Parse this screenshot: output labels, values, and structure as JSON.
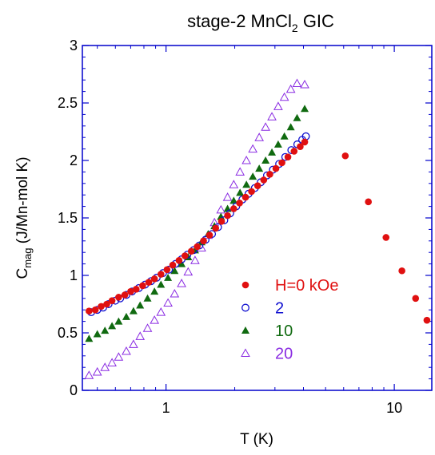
{
  "chart_data": {
    "type": "scatter",
    "title": {
      "main": "stage-2 MnCl",
      "sub": "2",
      "tail": " GIC"
    },
    "xlabel": "T (K)",
    "ylabel": {
      "main": "C",
      "sub": "mag",
      "tail": " (J/Mn-mol K)"
    },
    "xscale": "log",
    "xlim": [
      0.43,
      14.6
    ],
    "ylim": [
      0,
      3
    ],
    "x_ticks": [
      {
        "value": 1,
        "label": "1"
      },
      {
        "value": 10,
        "label": "10"
      }
    ],
    "y_ticks": [
      {
        "value": 0,
        "label": "0"
      },
      {
        "value": 0.5,
        "label": "0.5"
      },
      {
        "value": 1,
        "label": "1"
      },
      {
        "value": 1.5,
        "label": "1.5"
      },
      {
        "value": 2,
        "label": "2"
      },
      {
        "value": 2.5,
        "label": "2.5"
      },
      {
        "value": 3,
        "label": "3"
      }
    ],
    "grid": false,
    "legend_position": "right",
    "series": [
      {
        "name": "H=0 kOe",
        "marker": "filled-circle",
        "color": "#e01010",
        "points": [
          [
            0.46,
            0.69
          ],
          [
            0.49,
            0.7
          ],
          [
            0.52,
            0.73
          ],
          [
            0.55,
            0.75
          ],
          [
            0.58,
            0.78
          ],
          [
            0.62,
            0.81
          ],
          [
            0.66,
            0.83
          ],
          [
            0.7,
            0.86
          ],
          [
            0.74,
            0.88
          ],
          [
            0.79,
            0.91
          ],
          [
            0.84,
            0.94
          ],
          [
            0.89,
            0.97
          ],
          [
            0.95,
            1.01
          ],
          [
            1.01,
            1.05
          ],
          [
            1.07,
            1.09
          ],
          [
            1.14,
            1.13
          ],
          [
            1.21,
            1.17
          ],
          [
            1.29,
            1.21
          ],
          [
            1.37,
            1.25
          ],
          [
            1.46,
            1.3
          ],
          [
            1.55,
            1.35
          ],
          [
            1.65,
            1.41
          ],
          [
            1.75,
            1.47
          ],
          [
            1.86,
            1.52
          ],
          [
            1.98,
            1.58
          ],
          [
            2.1,
            1.63
          ],
          [
            2.23,
            1.68
          ],
          [
            2.37,
            1.73
          ],
          [
            2.52,
            1.78
          ],
          [
            2.68,
            1.83
          ],
          [
            2.85,
            1.88
          ],
          [
            3.03,
            1.93
          ],
          [
            3.22,
            1.98
          ],
          [
            3.42,
            2.03
          ],
          [
            3.64,
            2.08
          ],
          [
            3.87,
            2.12
          ],
          [
            4.05,
            2.16
          ],
          [
            6.1,
            2.04
          ],
          [
            7.7,
            1.64
          ],
          [
            9.2,
            1.33
          ],
          [
            10.8,
            1.04
          ],
          [
            12.4,
            0.8
          ],
          [
            13.9,
            0.61
          ]
        ]
      },
      {
        "name": "2",
        "marker": "open-circle",
        "color": "#1010d0",
        "points": [
          [
            0.47,
            0.68
          ],
          [
            0.5,
            0.7
          ],
          [
            0.53,
            0.72
          ],
          [
            0.56,
            0.75
          ],
          [
            0.6,
            0.78
          ],
          [
            0.63,
            0.8
          ],
          [
            0.67,
            0.83
          ],
          [
            0.71,
            0.86
          ],
          [
            0.76,
            0.89
          ],
          [
            0.81,
            0.92
          ],
          [
            0.86,
            0.95
          ],
          [
            0.91,
            0.98
          ],
          [
            0.97,
            1.02
          ],
          [
            1.03,
            1.05
          ],
          [
            1.1,
            1.1
          ],
          [
            1.17,
            1.14
          ],
          [
            1.24,
            1.18
          ],
          [
            1.32,
            1.22
          ],
          [
            1.4,
            1.26
          ],
          [
            1.49,
            1.31
          ],
          [
            1.59,
            1.36
          ],
          [
            1.69,
            1.42
          ],
          [
            1.8,
            1.48
          ],
          [
            1.91,
            1.54
          ],
          [
            2.03,
            1.6
          ],
          [
            2.16,
            1.66
          ],
          [
            2.3,
            1.71
          ],
          [
            2.45,
            1.76
          ],
          [
            2.6,
            1.81
          ],
          [
            2.77,
            1.87
          ],
          [
            2.94,
            1.92
          ],
          [
            3.13,
            1.97
          ],
          [
            3.33,
            2.03
          ],
          [
            3.54,
            2.09
          ],
          [
            3.76,
            2.14
          ],
          [
            3.95,
            2.18
          ],
          [
            4.1,
            2.21
          ]
        ]
      },
      {
        "name": "10",
        "marker": "filled-triangle",
        "color": "#106a10",
        "points": [
          [
            0.46,
            0.45
          ],
          [
            0.5,
            0.49
          ],
          [
            0.54,
            0.52
          ],
          [
            0.58,
            0.56
          ],
          [
            0.62,
            0.6
          ],
          [
            0.67,
            0.64
          ],
          [
            0.72,
            0.69
          ],
          [
            0.77,
            0.74
          ],
          [
            0.83,
            0.8
          ],
          [
            0.89,
            0.86
          ],
          [
            0.95,
            0.92
          ],
          [
            1.02,
            0.98
          ],
          [
            1.09,
            1.04
          ],
          [
            1.17,
            1.1
          ],
          [
            1.25,
            1.16
          ],
          [
            1.34,
            1.22
          ],
          [
            1.43,
            1.29
          ],
          [
            1.53,
            1.36
          ],
          [
            1.63,
            1.43
          ],
          [
            1.74,
            1.51
          ],
          [
            1.86,
            1.58
          ],
          [
            1.98,
            1.65
          ],
          [
            2.11,
            1.72
          ],
          [
            2.25,
            1.79
          ],
          [
            2.4,
            1.86
          ],
          [
            2.56,
            1.93
          ],
          [
            2.73,
            2.0
          ],
          [
            2.91,
            2.07
          ],
          [
            3.1,
            2.14
          ],
          [
            3.3,
            2.21
          ],
          [
            3.52,
            2.29
          ],
          [
            3.75,
            2.37
          ],
          [
            4.05,
            2.45
          ]
        ]
      },
      {
        "name": "20",
        "marker": "open-triangle",
        "color": "#8a2be2",
        "points": [
          [
            0.46,
            0.13
          ],
          [
            0.5,
            0.16
          ],
          [
            0.54,
            0.2
          ],
          [
            0.58,
            0.24
          ],
          [
            0.62,
            0.29
          ],
          [
            0.67,
            0.34
          ],
          [
            0.72,
            0.4
          ],
          [
            0.77,
            0.47
          ],
          [
            0.83,
            0.54
          ],
          [
            0.89,
            0.61
          ],
          [
            0.95,
            0.68
          ],
          [
            1.02,
            0.76
          ],
          [
            1.09,
            0.84
          ],
          [
            1.17,
            0.93
          ],
          [
            1.25,
            1.03
          ],
          [
            1.34,
            1.13
          ],
          [
            1.43,
            1.24
          ],
          [
            1.53,
            1.35
          ],
          [
            1.63,
            1.46
          ],
          [
            1.74,
            1.57
          ],
          [
            1.86,
            1.68
          ],
          [
            1.98,
            1.79
          ],
          [
            2.11,
            1.9
          ],
          [
            2.25,
            2.0
          ],
          [
            2.4,
            2.1
          ],
          [
            2.56,
            2.2
          ],
          [
            2.73,
            2.29
          ],
          [
            2.91,
            2.38
          ],
          [
            3.1,
            2.47
          ],
          [
            3.3,
            2.55
          ],
          [
            3.52,
            2.62
          ],
          [
            3.75,
            2.67
          ],
          [
            4.05,
            2.66
          ]
        ]
      }
    ]
  }
}
